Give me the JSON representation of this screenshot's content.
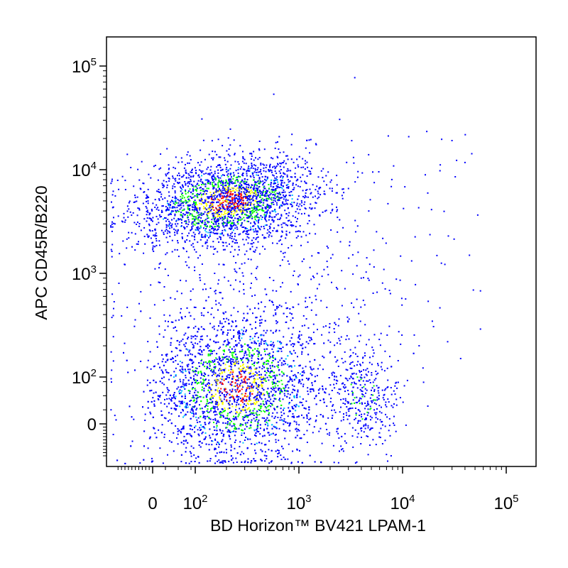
{
  "chart_data": {
    "type": "scatter",
    "subtype": "flow-cytometry-pseudocolor-dot-plot",
    "title": "",
    "xlabel": "BD Horizon™ BV421 LPAM-1",
    "ylabel": "APC CD45R/B220",
    "x_scale": "biexponential",
    "y_scale": "biexponential",
    "xlim": [
      -400,
      200000
    ],
    "ylim": [
      -400,
      200000
    ],
    "grid": false,
    "legend": "none",
    "x_ticks": [
      {
        "base": "0",
        "exp": "",
        "value": 0
      },
      {
        "base": "10",
        "exp": "2",
        "value": 100
      },
      {
        "base": "10",
        "exp": "3",
        "value": 1000
      },
      {
        "base": "10",
        "exp": "4",
        "value": 10000
      },
      {
        "base": "10",
        "exp": "5",
        "value": 100000
      }
    ],
    "y_ticks": [
      {
        "base": "0",
        "exp": "",
        "value": 0
      },
      {
        "base": "10",
        "exp": "2",
        "value": 100
      },
      {
        "base": "10",
        "exp": "3",
        "value": 1000
      },
      {
        "base": "10",
        "exp": "4",
        "value": 10000
      },
      {
        "base": "10",
        "exp": "5",
        "value": 100000
      }
    ],
    "density_colors": {
      "low": "#0000ff",
      "mid_low": "#00c0ff",
      "mid": "#00ff00",
      "mid_high": "#ffff00",
      "high": "#ff0000"
    },
    "populations": [
      {
        "label": "",
        "description": "B220 high, LPAM-1 low/intermediate",
        "x_center": 200,
        "y_center": 5000,
        "share": 0.38
      },
      {
        "label": "",
        "description": "B220 negative, LPAM-1 low/intermediate",
        "x_center": 250,
        "y_center": 80,
        "share": 0.48
      },
      {
        "label": "",
        "description": "B220 negative, LPAM-1 high",
        "x_center": 4000,
        "y_center": 60,
        "share": 0.06
      },
      {
        "label": "",
        "description": "transitional / scattered events",
        "x_center": 500,
        "y_center": 600,
        "share": 0.08
      }
    ]
  }
}
